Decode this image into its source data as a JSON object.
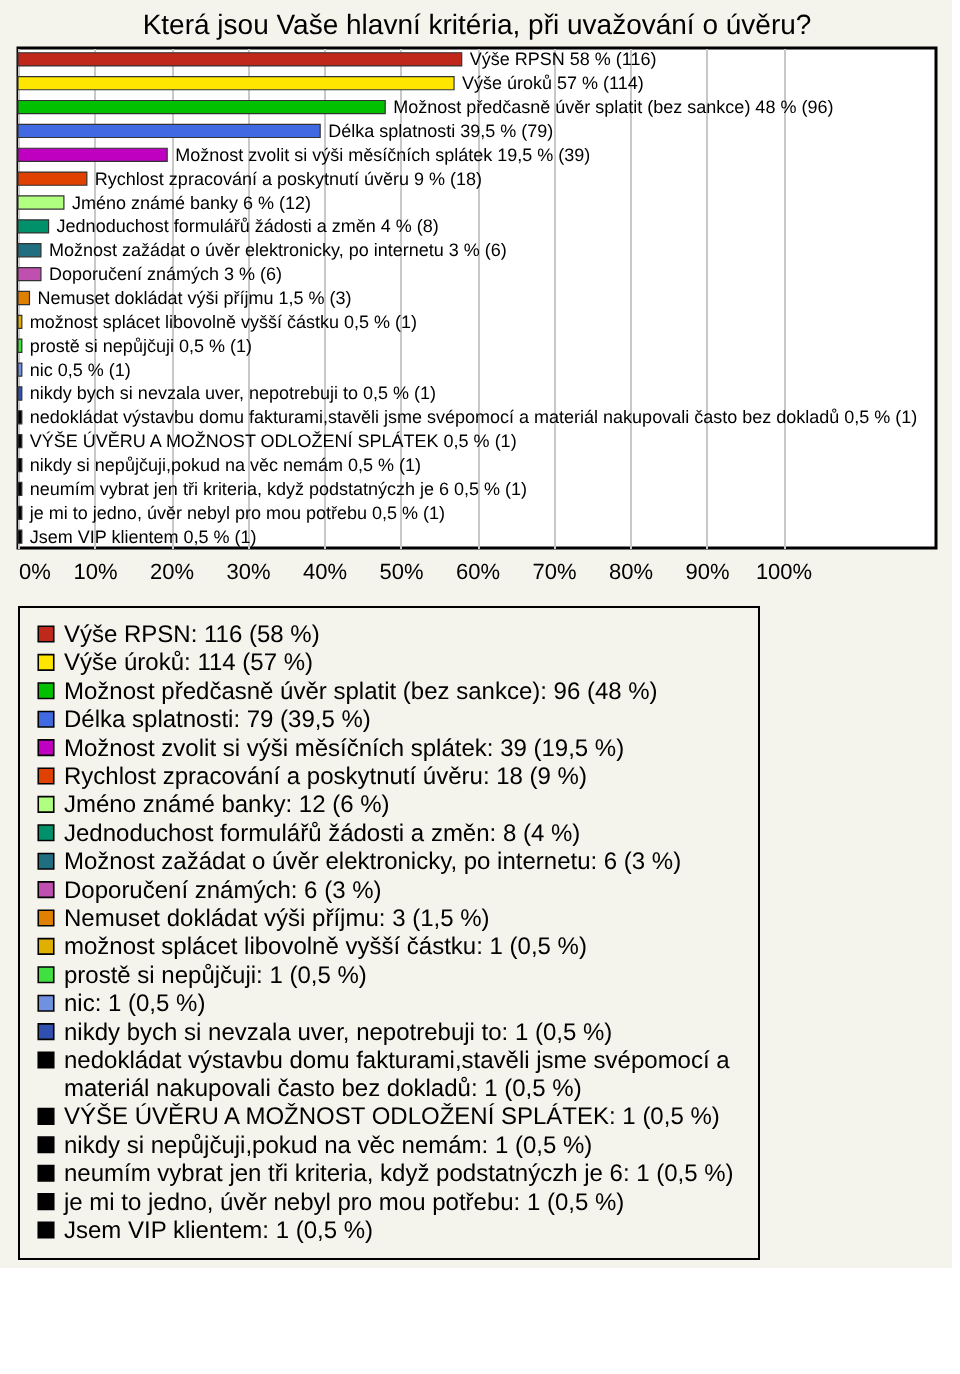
{
  "chart_data": {
    "type": "bar",
    "orientation": "horizontal",
    "title": "Která jsou Vaše hlavní kritéria, při uvažování o úvěru?",
    "categories": [
      null,
      null,
      null,
      null,
      null,
      null,
      null,
      null,
      null,
      null,
      null,
      null,
      null,
      null,
      null,
      null,
      null,
      null,
      null,
      null,
      null
    ],
    "series": [
      {
        "name": "Výše RPSN: 116 (58 %)",
        "color": "#c0281c",
        "values": [
          58,
          null,
          null,
          null,
          null,
          null,
          null,
          null,
          null,
          null,
          null,
          null,
          null,
          null,
          null,
          null,
          null,
          null,
          null,
          null,
          null
        ],
        "value_labels": [
          "Výše RPSN 58 % (116)",
          null,
          null,
          null,
          null,
          null,
          null,
          null,
          null,
          null,
          null,
          null,
          null,
          null,
          null,
          null,
          null,
          null,
          null,
          null,
          null
        ]
      },
      {
        "name": "Výše úroků: 114 (57 %)",
        "color": "#ffe600",
        "values": [
          null,
          57,
          null,
          null,
          null,
          null,
          null,
          null,
          null,
          null,
          null,
          null,
          null,
          null,
          null,
          null,
          null,
          null,
          null,
          null,
          null
        ],
        "value_labels": [
          null,
          "Výše úroků 57 % (114)",
          null,
          null,
          null,
          null,
          null,
          null,
          null,
          null,
          null,
          null,
          null,
          null,
          null,
          null,
          null,
          null,
          null,
          null,
          null
        ]
      },
      {
        "name": "Možnost předčasně úvěr splatit (bez sankce): 96 (48 %)",
        "color": "#00c000",
        "values": [
          null,
          null,
          48,
          null,
          null,
          null,
          null,
          null,
          null,
          null,
          null,
          null,
          null,
          null,
          null,
          null,
          null,
          null,
          null,
          null,
          null
        ],
        "value_labels": [
          null,
          null,
          "Možnost předčasně úvěr splatit (bez sankce) 48 % (96)",
          null,
          null,
          null,
          null,
          null,
          null,
          null,
          null,
          null,
          null,
          null,
          null,
          null,
          null,
          null,
          null,
          null,
          null
        ]
      },
      {
        "name": "Délka splatnosti: 79 (39,5 %)",
        "color": "#4169e1",
        "values": [
          null,
          null,
          null,
          39.5,
          null,
          null,
          null,
          null,
          null,
          null,
          null,
          null,
          null,
          null,
          null,
          null,
          null,
          null,
          null,
          null,
          null
        ],
        "value_labels": [
          null,
          null,
          null,
          "Délka splatnosti 39,5 % (79)",
          null,
          null,
          null,
          null,
          null,
          null,
          null,
          null,
          null,
          null,
          null,
          null,
          null,
          null,
          null,
          null,
          null
        ]
      },
      {
        "name": "Možnost zvolit si výši měsíčních splátek: 39 (19,5 %)",
        "color": "#c000c0",
        "values": [
          null,
          null,
          null,
          null,
          19.5,
          null,
          null,
          null,
          null,
          null,
          null,
          null,
          null,
          null,
          null,
          null,
          null,
          null,
          null,
          null,
          null
        ],
        "value_labels": [
          null,
          null,
          null,
          null,
          "Možnost zvolit si výši měsíčních splátek 19,5 % (39)",
          null,
          null,
          null,
          null,
          null,
          null,
          null,
          null,
          null,
          null,
          null,
          null,
          null,
          null,
          null,
          null
        ]
      },
      {
        "name": "Rychlost zpracování a poskytnutí úvěru: 18 (9 %)",
        "color": "#e04000",
        "values": [
          null,
          null,
          null,
          null,
          null,
          9,
          null,
          null,
          null,
          null,
          null,
          null,
          null,
          null,
          null,
          null,
          null,
          null,
          null,
          null,
          null
        ],
        "value_labels": [
          null,
          null,
          null,
          null,
          null,
          "Rychlost zpracování a poskytnutí úvěru 9 % (18)",
          null,
          null,
          null,
          null,
          null,
          null,
          null,
          null,
          null,
          null,
          null,
          null,
          null,
          null,
          null
        ]
      },
      {
        "name": "Jméno známé banky: 12 (6 %)",
        "color": "#b0ff80",
        "values": [
          null,
          null,
          null,
          null,
          null,
          null,
          6,
          null,
          null,
          null,
          null,
          null,
          null,
          null,
          null,
          null,
          null,
          null,
          null,
          null,
          null
        ],
        "value_labels": [
          null,
          null,
          null,
          null,
          null,
          null,
          "Jméno známé banky 6 % (12)",
          null,
          null,
          null,
          null,
          null,
          null,
          null,
          null,
          null,
          null,
          null,
          null,
          null,
          null
        ]
      },
      {
        "name": "Jednoduchost formulářů žádosti a změn: 8 (4 %)",
        "color": "#00906a",
        "values": [
          null,
          null,
          null,
          null,
          null,
          null,
          null,
          4,
          null,
          null,
          null,
          null,
          null,
          null,
          null,
          null,
          null,
          null,
          null,
          null,
          null
        ],
        "value_labels": [
          null,
          null,
          null,
          null,
          null,
          null,
          null,
          "Jednoduchost formulářů žádosti a změn 4 % (8)",
          null,
          null,
          null,
          null,
          null,
          null,
          null,
          null,
          null,
          null,
          null,
          null,
          null
        ]
      },
      {
        "name": "Možnost zažádat o úvěr elektronicky, po internetu: 6 (3 %)",
        "color": "#206f80",
        "values": [
          null,
          null,
          null,
          null,
          null,
          null,
          null,
          null,
          3,
          null,
          null,
          null,
          null,
          null,
          null,
          null,
          null,
          null,
          null,
          null,
          null
        ],
        "value_labels": [
          null,
          null,
          null,
          null,
          null,
          null,
          null,
          null,
          "Možnost zažádat o úvěr elektronicky, po internetu 3 % (6)",
          null,
          null,
          null,
          null,
          null,
          null,
          null,
          null,
          null,
          null,
          null,
          null
        ]
      },
      {
        "name": "Doporučení známých: 6 (3 %)",
        "color": "#c050b0",
        "values": [
          null,
          null,
          null,
          null,
          null,
          null,
          null,
          null,
          null,
          3,
          null,
          null,
          null,
          null,
          null,
          null,
          null,
          null,
          null,
          null,
          null
        ],
        "value_labels": [
          null,
          null,
          null,
          null,
          null,
          null,
          null,
          null,
          null,
          "Doporučení známých 3 % (6)",
          null,
          null,
          null,
          null,
          null,
          null,
          null,
          null,
          null,
          null,
          null
        ]
      },
      {
        "name": "Nemuset dokládat výši příjmu: 3 (1,5 %)",
        "color": "#e08000",
        "values": [
          null,
          null,
          null,
          null,
          null,
          null,
          null,
          null,
          null,
          null,
          1.5,
          null,
          null,
          null,
          null,
          null,
          null,
          null,
          null,
          null,
          null
        ],
        "value_labels": [
          null,
          null,
          null,
          null,
          null,
          null,
          null,
          null,
          null,
          null,
          "Nemuset dokládat výši příjmu 1,5 % (3)",
          null,
          null,
          null,
          null,
          null,
          null,
          null,
          null,
          null,
          null
        ]
      },
      {
        "name": "možnost splácet libovolně vyšší částku: 1 (0,5 %)",
        "color": "#e0b000",
        "values": [
          null,
          null,
          null,
          null,
          null,
          null,
          null,
          null,
          null,
          null,
          null,
          0.5,
          null,
          null,
          null,
          null,
          null,
          null,
          null,
          null,
          null
        ],
        "value_labels": [
          null,
          null,
          null,
          null,
          null,
          null,
          null,
          null,
          null,
          null,
          null,
          "možnost splácet libovolně vyšší částku 0,5 % (1)",
          null,
          null,
          null,
          null,
          null,
          null,
          null,
          null,
          null
        ]
      },
      {
        "name": "prostě si nepůjčuji: 1 (0,5 %)",
        "color": "#40e040",
        "values": [
          null,
          null,
          null,
          null,
          null,
          null,
          null,
          null,
          null,
          null,
          null,
          null,
          0.5,
          null,
          null,
          null,
          null,
          null,
          null,
          null,
          null
        ],
        "value_labels": [
          null,
          null,
          null,
          null,
          null,
          null,
          null,
          null,
          null,
          null,
          null,
          null,
          "prostě si nepůjčuji 0,5 % (1)",
          null,
          null,
          null,
          null,
          null,
          null,
          null,
          null
        ]
      },
      {
        "name": "nic: 1 (0,5 %)",
        "color": "#7090e0",
        "values": [
          null,
          null,
          null,
          null,
          null,
          null,
          null,
          null,
          null,
          null,
          null,
          null,
          null,
          0.5,
          null,
          null,
          null,
          null,
          null,
          null,
          null
        ],
        "value_labels": [
          null,
          null,
          null,
          null,
          null,
          null,
          null,
          null,
          null,
          null,
          null,
          null,
          null,
          "nic 0,5 % (1)",
          null,
          null,
          null,
          null,
          null,
          null,
          null
        ]
      },
      {
        "name": "nikdy bych si nevzala uver, nepotrebuji to: 1 (0,5 %)",
        "color": "#3050b0",
        "values": [
          null,
          null,
          null,
          null,
          null,
          null,
          null,
          null,
          null,
          null,
          null,
          null,
          null,
          null,
          0.5,
          null,
          null,
          null,
          null,
          null,
          null
        ],
        "value_labels": [
          null,
          null,
          null,
          null,
          null,
          null,
          null,
          null,
          null,
          null,
          null,
          null,
          null,
          null,
          "nikdy bych si nevzala uver, nepotrebuji to 0,5 % (1)",
          null,
          null,
          null,
          null,
          null,
          null
        ]
      },
      {
        "name": "nedokládat výstavbu domu fakturami,stavěli jsme svépomocí a materiál nakupovali často bez dokladů: 1 (0,5 %)",
        "color": "#000000",
        "values": [
          null,
          null,
          null,
          null,
          null,
          null,
          null,
          null,
          null,
          null,
          null,
          null,
          null,
          null,
          null,
          0.5,
          null,
          null,
          null,
          null,
          null
        ],
        "value_labels": [
          null,
          null,
          null,
          null,
          null,
          null,
          null,
          null,
          null,
          null,
          null,
          null,
          null,
          null,
          null,
          "nedokládat výstavbu domu fakturami,stavěli jsme svépomocí a materiál nakupovali často bez dokladů 0,5 % (1)",
          null,
          null,
          null,
          null,
          null
        ]
      },
      {
        "name": "VÝŠE ÚVĚRU A MOŽNOST ODLOŽENÍ SPLÁTEK: 1 (0,5 %)",
        "color": "#000001",
        "values": [
          null,
          null,
          null,
          null,
          null,
          null,
          null,
          null,
          null,
          null,
          null,
          null,
          null,
          null,
          null,
          null,
          0.5,
          null,
          null,
          null,
          null
        ],
        "value_labels": [
          null,
          null,
          null,
          null,
          null,
          null,
          null,
          null,
          null,
          null,
          null,
          null,
          null,
          null,
          null,
          null,
          "VÝŠE ÚVĚRU A MOŽNOST ODLOŽENÍ SPLÁTEK 0,5 % (1)",
          null,
          null,
          null,
          null
        ]
      },
      {
        "name": "nikdy si nepůjčuji,pokud na věc nemám: 1 (0,5 %)",
        "color": "#000002",
        "values": [
          null,
          null,
          null,
          null,
          null,
          null,
          null,
          null,
          null,
          null,
          null,
          null,
          null,
          null,
          null,
          null,
          null,
          0.5,
          null,
          null,
          null
        ],
        "value_labels": [
          null,
          null,
          null,
          null,
          null,
          null,
          null,
          null,
          null,
          null,
          null,
          null,
          null,
          null,
          null,
          null,
          null,
          "nikdy si nepůjčuji,pokud na věc nemám 0,5 % (1)",
          null,
          null,
          null
        ]
      },
      {
        "name": "neumím vybrat jen tři kriteria, když  podstatnýczh je 6: 1 (0,5 %)",
        "color": "#010000",
        "values": [
          null,
          null,
          null,
          null,
          null,
          null,
          null,
          null,
          null,
          null,
          null,
          null,
          null,
          null,
          null,
          null,
          null,
          null,
          0.5,
          null,
          null
        ],
        "value_labels": [
          null,
          null,
          null,
          null,
          null,
          null,
          null,
          null,
          null,
          null,
          null,
          null,
          null,
          null,
          null,
          null,
          null,
          null,
          "neumím vybrat jen tři kriteria, když  podstatnýczh je 6 0,5 % (1)",
          null,
          null
        ]
      },
      {
        "name": "je mi to jedno, úvěr nebyl pro mou potřebu: 1 (0,5 %)",
        "color": "#020000",
        "values": [
          null,
          null,
          null,
          null,
          null,
          null,
          null,
          null,
          null,
          null,
          null,
          null,
          null,
          null,
          null,
          null,
          null,
          null,
          null,
          0.5,
          null
        ],
        "value_labels": [
          null,
          null,
          null,
          null,
          null,
          null,
          null,
          null,
          null,
          null,
          null,
          null,
          null,
          null,
          null,
          null,
          null,
          null,
          null,
          "je mi to jedno, úvěr nebyl pro mou potřebu 0,5 % (1)",
          null
        ]
      },
      {
        "name": "Jsem VIP klientem: 1 (0,5 %)",
        "color": "#000100",
        "values": [
          null,
          null,
          null,
          null,
          null,
          null,
          null,
          null,
          null,
          null,
          null,
          null,
          null,
          null,
          null,
          null,
          null,
          null,
          null,
          null,
          0.5
        ],
        "value_labels": [
          null,
          null,
          null,
          null,
          null,
          null,
          null,
          null,
          null,
          null,
          null,
          null,
          null,
          null,
          null,
          null,
          null,
          null,
          null,
          null,
          "Jsem VIP klientem 0,5 % (1)"
        ]
      }
    ],
    "xlim": [
      0,
      120
    ],
    "xticks": [
      {
        "value": 0,
        "label": "0%"
      },
      {
        "value": 10,
        "label": "10%"
      },
      {
        "value": 20,
        "label": "20%"
      },
      {
        "value": 30,
        "label": "30%"
      },
      {
        "value": 40,
        "label": "40%"
      },
      {
        "value": 50,
        "label": "50%"
      },
      {
        "value": 60,
        "label": "60%"
      },
      {
        "value": 70,
        "label": "70%"
      },
      {
        "value": 80,
        "label": "80%"
      },
      {
        "value": 90,
        "label": "90%"
      },
      {
        "value": 100,
        "label": "100%"
      }
    ],
    "grid": "x",
    "tick_labels": "x",
    "legend": "bottom"
  }
}
